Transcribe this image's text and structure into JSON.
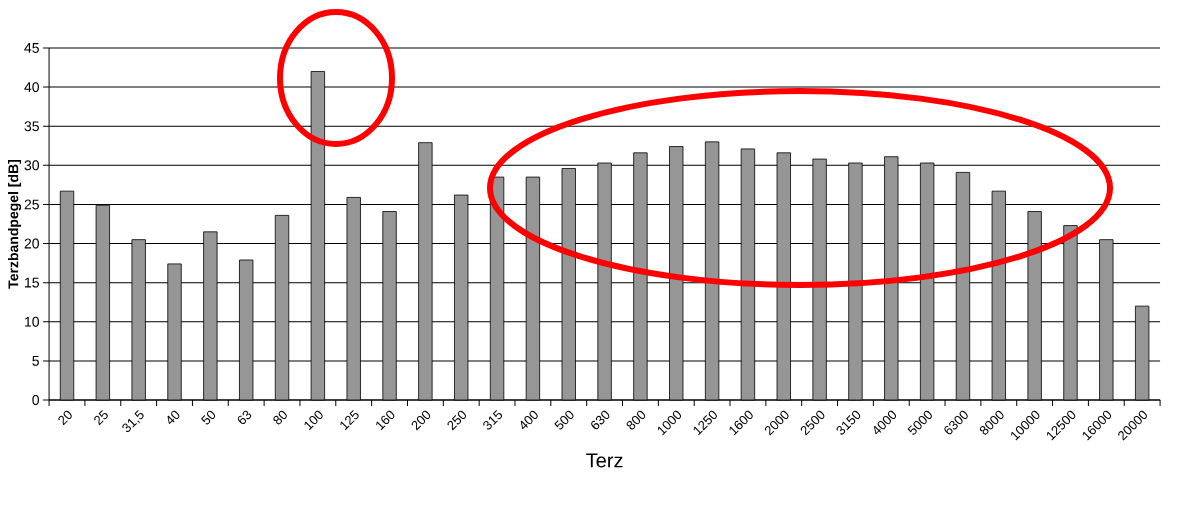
{
  "chart_data": {
    "type": "bar",
    "xlabel": "Terz",
    "ylabel": "Terzbandpegel [dB]",
    "categories": [
      "20",
      "25",
      "31,5",
      "40",
      "50",
      "63",
      "80",
      "100",
      "125",
      "160",
      "200",
      "250",
      "315",
      "400",
      "500",
      "630",
      "800",
      "1000",
      "1250",
      "1600",
      "2000",
      "2500",
      "3150",
      "4000",
      "5000",
      "6300",
      "8000",
      "10000",
      "12500",
      "16000",
      "20000"
    ],
    "values": [
      26.7,
      24.9,
      20.5,
      17.4,
      21.5,
      17.9,
      23.6,
      42,
      25.9,
      24.1,
      32.9,
      26.2,
      28.5,
      28.5,
      29.6,
      30.3,
      31.6,
      32.4,
      33.0,
      32.1,
      31.6,
      30.8,
      30.3,
      31.1,
      30.3,
      29.1,
      26.7,
      24.1,
      22.3,
      20.5,
      12.0
    ],
    "color": "#969696",
    "ylim": [
      0,
      45
    ],
    "yticks": [
      0,
      5,
      10,
      15,
      20,
      25,
      30,
      35,
      40,
      45
    ],
    "grid": "y"
  }
}
